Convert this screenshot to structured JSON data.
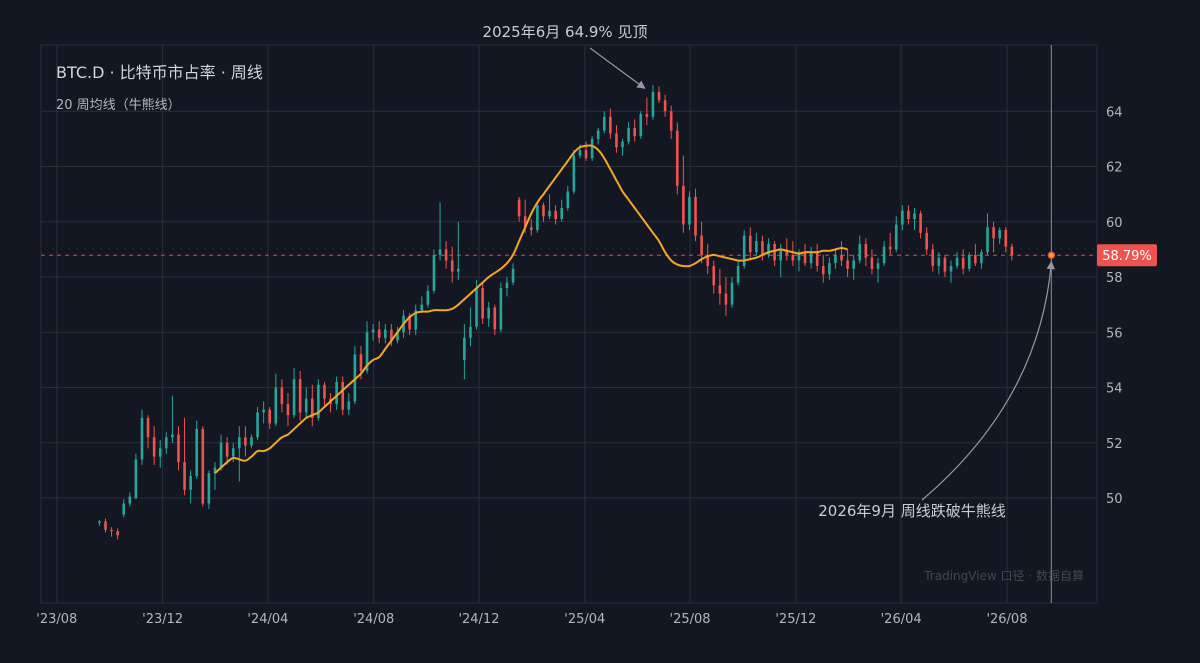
{
  "chart_data": {
    "type": "candlestick",
    "title": "BTC.D  ·  比特币市占率  ·  周线",
    "subtitle": "20 周均线（牛熊线）",
    "ylim": [
      46.2,
      66.4
    ],
    "y_ticks": [
      50,
      52,
      54,
      56,
      58,
      60,
      62,
      64
    ],
    "x_ticks": [
      "'23/08",
      "'23/12",
      "'24/04",
      "'24/08",
      "'24/12",
      "'25/04",
      "'25/08",
      "'25/12",
      "'26/04",
      "'26/08"
    ],
    "x_tick_weeks": [
      0,
      17.4,
      34.7,
      52.1,
      69.4,
      86.8,
      104.1,
      121.5,
      138.8,
      156.2
    ],
    "current_value": 58.79,
    "current_value_label": "58.79%",
    "current_week": 163.5,
    "colors": {
      "up": "#26a69a",
      "down": "#ef5350",
      "ma": "#f5a623",
      "background": "#131722",
      "grid": "#2a2e39"
    },
    "annotations": [
      {
        "text": "2025年6月  64.9% 见顶",
        "week": 97.5,
        "value": 64.9
      },
      {
        "text": "2026年9月  周线跌破牛熊线",
        "week": 163.5,
        "value": 58.85
      }
    ],
    "watermark": "TradingView 口径  ·  数据自算",
    "series": [
      {
        "type": "ohlc",
        "start_week": 7,
        "candles": [
          [
            49.1,
            49.2,
            49.0,
            49.15
          ],
          [
            49.15,
            49.25,
            48.75,
            48.85
          ],
          [
            48.85,
            48.95,
            48.6,
            48.8
          ],
          [
            48.8,
            48.9,
            48.5,
            48.65
          ],
          [
            49.4,
            49.95,
            49.3,
            49.8
          ],
          [
            49.8,
            50.2,
            49.7,
            50.05
          ],
          [
            50.0,
            51.6,
            49.95,
            51.4
          ],
          [
            51.4,
            53.2,
            51.2,
            52.9
          ],
          [
            52.9,
            53.0,
            51.8,
            52.2
          ],
          [
            52.2,
            52.6,
            51.2,
            51.5
          ],
          [
            51.5,
            52.1,
            51.1,
            51.8
          ],
          [
            51.8,
            52.4,
            51.6,
            52.2
          ],
          [
            52.2,
            53.7,
            52.0,
            52.3
          ],
          [
            52.3,
            52.6,
            51.0,
            51.3
          ],
          [
            51.3,
            52.9,
            50.1,
            50.3
          ],
          [
            50.3,
            51.0,
            49.8,
            50.8
          ],
          [
            50.8,
            52.8,
            50.7,
            52.5
          ],
          [
            52.5,
            52.6,
            49.7,
            49.8
          ],
          [
            49.8,
            51.0,
            49.6,
            50.9
          ],
          [
            50.9,
            51.3,
            50.3,
            51.1
          ],
          [
            51.1,
            52.3,
            51.0,
            52.0
          ],
          [
            52.0,
            52.2,
            51.2,
            51.5
          ],
          [
            51.5,
            52.0,
            51.3,
            51.8
          ],
          [
            51.8,
            52.6,
            50.6,
            52.2
          ],
          [
            52.2,
            52.6,
            51.5,
            51.9
          ],
          [
            51.9,
            52.3,
            51.8,
            52.2
          ],
          [
            52.2,
            53.3,
            52.1,
            53.1
          ],
          [
            53.1,
            53.5,
            52.7,
            53.2
          ],
          [
            53.2,
            53.3,
            52.5,
            52.7
          ],
          [
            52.7,
            54.5,
            52.6,
            54.0
          ],
          [
            54.0,
            54.3,
            53.1,
            53.4
          ],
          [
            53.4,
            53.8,
            52.6,
            53.0
          ],
          [
            53.0,
            54.7,
            52.9,
            54.3
          ],
          [
            54.3,
            54.6,
            52.8,
            53.1
          ],
          [
            53.1,
            54.0,
            52.9,
            53.6
          ],
          [
            53.6,
            54.1,
            52.6,
            52.9
          ],
          [
            52.9,
            54.3,
            52.8,
            54.1
          ],
          [
            54.1,
            54.2,
            53.3,
            53.6
          ],
          [
            53.6,
            53.8,
            53.1,
            53.4
          ],
          [
            53.4,
            54.4,
            53.2,
            54.2
          ],
          [
            54.2,
            54.4,
            53.0,
            53.2
          ],
          [
            53.2,
            53.8,
            53.0,
            53.5
          ],
          [
            53.5,
            55.5,
            53.4,
            55.2
          ],
          [
            55.2,
            55.5,
            54.3,
            54.6
          ],
          [
            54.6,
            56.4,
            54.5,
            56.0
          ],
          [
            56.0,
            56.3,
            55.7,
            56.1
          ],
          [
            56.1,
            56.4,
            55.6,
            55.8
          ],
          [
            55.8,
            56.3,
            55.6,
            56.1
          ],
          [
            56.1,
            56.3,
            55.5,
            55.7
          ],
          [
            55.7,
            56.2,
            55.6,
            56.0
          ],
          [
            56.0,
            56.8,
            55.8,
            56.6
          ],
          [
            56.6,
            56.7,
            55.9,
            56.1
          ],
          [
            56.1,
            57.0,
            55.9,
            56.8
          ],
          [
            56.8,
            57.3,
            56.7,
            57.0
          ],
          [
            57.0,
            57.7,
            56.9,
            57.5
          ],
          [
            57.5,
            59.0,
            57.4,
            58.8
          ],
          [
            58.8,
            60.7,
            58.6,
            59.0
          ],
          [
            59.0,
            59.3,
            58.3,
            58.6
          ],
          [
            58.6,
            59.1,
            57.8,
            58.2
          ],
          [
            58.2,
            60.0,
            57.9,
            58.3
          ],
          [
            55.0,
            56.3,
            54.3,
            55.8
          ],
          [
            55.8,
            56.9,
            55.5,
            56.2
          ],
          [
            56.2,
            57.9,
            56.1,
            57.6
          ],
          [
            57.6,
            57.8,
            56.3,
            56.5
          ],
          [
            56.5,
            57.1,
            56.2,
            56.9
          ],
          [
            56.9,
            57.0,
            55.9,
            56.1
          ],
          [
            56.1,
            57.8,
            56.0,
            57.6
          ],
          [
            57.6,
            58.0,
            57.3,
            57.8
          ],
          [
            57.8,
            58.5,
            57.7,
            58.3
          ],
          [
            60.8,
            60.9,
            60.0,
            60.2
          ],
          [
            60.2,
            60.8,
            59.6,
            59.8
          ],
          [
            59.8,
            60.1,
            59.5,
            59.7
          ],
          [
            59.7,
            60.7,
            59.6,
            60.6
          ],
          [
            60.6,
            60.7,
            60.0,
            60.2
          ],
          [
            60.2,
            61.0,
            60.1,
            60.4
          ],
          [
            60.4,
            60.6,
            59.9,
            60.1
          ],
          [
            60.1,
            60.8,
            60.0,
            60.5
          ],
          [
            60.5,
            61.3,
            60.4,
            61.1
          ],
          [
            61.1,
            62.6,
            61.0,
            62.4
          ],
          [
            62.4,
            62.8,
            62.3,
            62.6
          ],
          [
            62.6,
            62.9,
            62.2,
            62.3
          ],
          [
            62.3,
            63.1,
            62.2,
            63.0
          ],
          [
            63.0,
            63.4,
            62.8,
            63.3
          ],
          [
            63.3,
            64.0,
            63.2,
            63.8
          ],
          [
            63.8,
            64.1,
            63.0,
            63.2
          ],
          [
            63.2,
            63.5,
            62.5,
            62.7
          ],
          [
            62.7,
            63.0,
            62.4,
            62.9
          ],
          [
            62.9,
            63.6,
            62.8,
            63.4
          ],
          [
            63.4,
            63.7,
            62.9,
            63.1
          ],
          [
            63.1,
            64.0,
            63.0,
            63.9
          ],
          [
            63.9,
            64.5,
            63.5,
            63.8
          ],
          [
            63.8,
            64.95,
            63.7,
            64.7
          ],
          [
            64.7,
            64.9,
            64.3,
            64.4
          ],
          [
            64.4,
            64.6,
            63.8,
            64.0
          ],
          [
            64.0,
            64.2,
            63.0,
            63.3
          ],
          [
            63.3,
            63.6,
            61.0,
            61.3
          ],
          [
            61.3,
            62.4,
            59.6,
            59.9
          ],
          [
            59.9,
            61.1,
            59.7,
            60.9
          ],
          [
            60.9,
            61.2,
            59.3,
            59.5
          ],
          [
            59.5,
            60.0,
            58.5,
            58.8
          ],
          [
            58.8,
            59.2,
            58.1,
            58.4
          ],
          [
            58.4,
            58.6,
            57.4,
            57.7
          ],
          [
            57.7,
            58.3,
            57.0,
            57.4
          ],
          [
            57.4,
            58.0,
            56.6,
            57.0
          ],
          [
            57.0,
            58.0,
            56.9,
            57.8
          ],
          [
            57.8,
            58.6,
            57.7,
            58.4
          ],
          [
            58.4,
            59.7,
            58.3,
            59.5
          ],
          [
            59.5,
            59.8,
            58.7,
            58.9
          ],
          [
            58.9,
            59.6,
            58.8,
            59.3
          ],
          [
            59.3,
            59.5,
            58.6,
            58.8
          ],
          [
            58.8,
            59.4,
            58.7,
            59.2
          ],
          [
            59.2,
            59.3,
            58.4,
            58.6
          ],
          [
            58.6,
            59.2,
            58.0,
            59.0
          ],
          [
            59.0,
            59.4,
            58.6,
            58.8
          ],
          [
            58.8,
            59.3,
            58.4,
            58.6
          ],
          [
            58.6,
            59.0,
            58.2,
            58.9
          ],
          [
            58.9,
            59.2,
            58.4,
            58.5
          ],
          [
            58.5,
            59.1,
            58.3,
            58.9
          ],
          [
            58.9,
            59.2,
            58.2,
            58.4
          ],
          [
            58.4,
            58.8,
            57.8,
            58.1
          ],
          [
            58.1,
            58.7,
            57.9,
            58.5
          ],
          [
            58.5,
            59.0,
            58.3,
            58.8
          ],
          [
            58.8,
            59.3,
            58.4,
            58.6
          ],
          [
            58.6,
            59.0,
            58.0,
            58.3
          ],
          [
            58.3,
            58.8,
            57.9,
            58.6
          ],
          [
            58.6,
            59.5,
            58.5,
            59.2
          ],
          [
            59.2,
            59.4,
            58.4,
            58.7
          ],
          [
            58.7,
            59.0,
            58.1,
            58.3
          ],
          [
            58.3,
            58.7,
            57.8,
            58.5
          ],
          [
            58.5,
            59.3,
            58.4,
            59.1
          ],
          [
            59.1,
            59.6,
            58.8,
            59.0
          ],
          [
            59.0,
            60.2,
            58.9,
            59.9
          ],
          [
            59.9,
            60.6,
            59.7,
            60.4
          ],
          [
            60.4,
            60.6,
            59.9,
            60.1
          ],
          [
            60.1,
            60.5,
            59.7,
            60.3
          ],
          [
            60.3,
            60.4,
            59.4,
            59.6
          ],
          [
            59.6,
            59.8,
            58.8,
            59.0
          ],
          [
            59.0,
            59.2,
            58.2,
            58.4
          ],
          [
            58.4,
            58.9,
            58.1,
            58.7
          ],
          [
            58.7,
            58.8,
            58.0,
            58.2
          ],
          [
            58.2,
            58.6,
            57.8,
            58.4
          ],
          [
            58.4,
            58.9,
            58.3,
            58.7
          ],
          [
            58.7,
            59.0,
            58.1,
            58.3
          ],
          [
            58.3,
            58.9,
            58.2,
            58.8
          ],
          [
            58.8,
            59.2,
            58.4,
            58.5
          ],
          [
            58.5,
            59.0,
            58.3,
            58.9
          ],
          [
            58.9,
            60.3,
            58.8,
            59.8
          ],
          [
            59.8,
            60.0,
            58.9,
            59.4
          ],
          [
            59.4,
            59.8,
            59.2,
            59.7
          ],
          [
            59.7,
            59.8,
            58.9,
            59.1
          ],
          [
            59.1,
            59.2,
            58.6,
            58.79
          ]
        ]
      },
      {
        "type": "ma",
        "start_week": 26,
        "values": [
          50.9,
          51.1,
          51.3,
          51.45,
          51.4,
          51.35,
          51.5,
          51.7,
          51.7,
          51.8,
          52.0,
          52.2,
          52.3,
          52.5,
          52.7,
          52.9,
          53.0,
          53.1,
          53.3,
          53.5,
          53.7,
          53.9,
          54.1,
          54.3,
          54.5,
          54.8,
          55.0,
          55.1,
          55.4,
          55.7,
          56.0,
          56.3,
          56.55,
          56.7,
          56.75,
          56.75,
          56.8,
          56.8,
          56.8,
          56.85,
          57.0,
          57.2,
          57.4,
          57.6,
          57.8,
          58.0,
          58.15,
          58.3,
          58.5,
          58.8,
          59.3,
          59.8,
          60.3,
          60.7,
          61.0,
          61.3,
          61.6,
          61.9,
          62.2,
          62.5,
          62.7,
          62.75,
          62.75,
          62.6,
          62.3,
          61.9,
          61.5,
          61.1,
          60.8,
          60.5,
          60.2,
          59.9,
          59.6,
          59.3,
          58.9,
          58.6,
          58.45,
          58.4,
          58.4,
          58.5,
          58.65,
          58.75,
          58.8,
          58.75,
          58.7,
          58.65,
          58.6,
          58.6,
          58.65,
          58.7,
          58.8,
          58.9,
          58.95,
          59.0,
          58.95,
          58.9,
          58.85,
          58.9,
          58.9,
          58.9,
          58.95,
          58.95,
          59.0,
          59.05,
          59.0
        ]
      }
    ]
  }
}
